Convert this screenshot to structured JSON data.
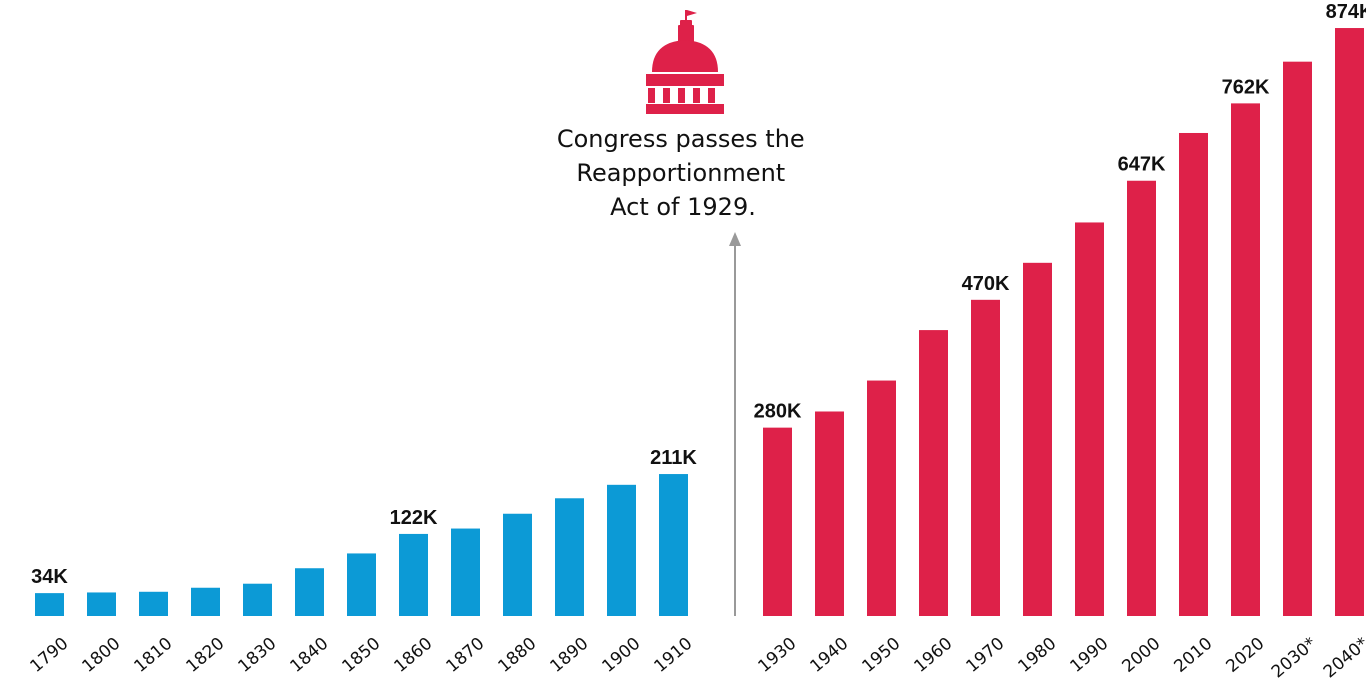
{
  "chart_data": {
    "type": "bar",
    "categories": [
      "1790",
      "1800",
      "1810",
      "1820",
      "1830",
      "1840",
      "1850",
      "1860",
      "1870",
      "1880",
      "1890",
      "1900",
      "1910",
      "1930",
      "1940",
      "1950",
      "1960",
      "1970",
      "1980",
      "1990",
      "2000",
      "2010",
      "2020",
      "2030*",
      "2040*"
    ],
    "values": [
      34,
      35,
      36,
      42,
      48,
      71,
      93,
      122,
      130,
      152,
      175,
      195,
      211,
      280,
      304,
      350,
      425,
      470,
      525,
      585,
      647,
      718,
      762,
      824,
      874
    ],
    "value_labels": [
      "34K",
      "",
      "",
      "",
      "",
      "",
      "",
      "122K",
      "",
      "",
      "",
      "",
      "211K",
      "280K",
      "",
      "",
      "",
      "470K",
      "",
      "",
      "647K",
      "",
      "762K",
      "",
      "874K"
    ],
    "unit": "K",
    "ylim": [
      0,
      880
    ],
    "grid": false,
    "colors": {
      "before_1929": "#0c9ad6",
      "after_1929": "#de2149",
      "annotation_arrow": "#999999",
      "text": "#111111"
    },
    "annotation": {
      "lines": [
        "Congress passes the",
        "Reapportionment",
        "Act of 1929."
      ],
      "icon": "capitol-building-icon"
    }
  }
}
